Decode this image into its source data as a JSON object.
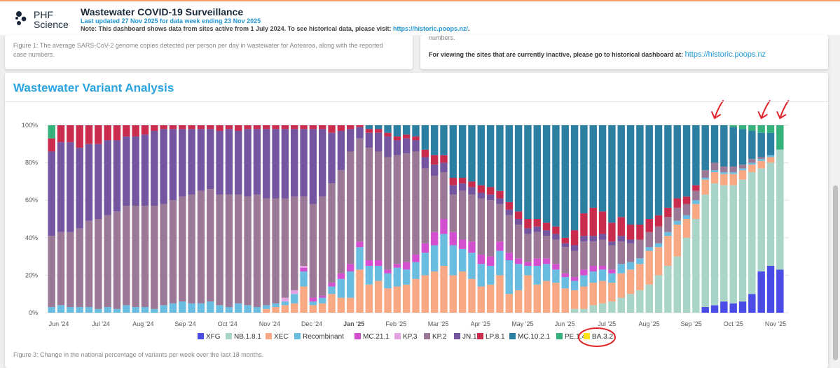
{
  "header": {
    "logo_line1": "PHF",
    "logo_line2": "Science",
    "title": "Wastewater COVID-19 Surveillance",
    "updated": "Last updated 27 Nov 2025 for data week ending 23 Nov 2025",
    "note_prefix": "Note: This dashboard shows data from sites active from 1 July 2024. To see historical data, please visit: ",
    "note_link": "https://historic.poops.nz/",
    "note_suffix": "."
  },
  "left_card": {
    "caption": "Figure 1: The average SARS-CoV-2 genome copies detected per person per day in wastewater for Aotearoa, along with the reported case numbers."
  },
  "right_card": {
    "numbers_text": "numbers.",
    "inactive_text": "For viewing the sites that are currently inactive, please go to historical dashboard at: ",
    "inactive_link": "https://historic.poops.nz"
  },
  "main": {
    "title": "Wastewater Variant Analysis",
    "caption": "Figure 3: Change in the national percentage of variants per week over the last 18 months."
  },
  "chart_data": {
    "type": "bar",
    "stacked": true,
    "title": "Wastewater Variant Analysis",
    "ylim": [
      0,
      100
    ],
    "y_ticks": [
      "0%",
      "20%",
      "40%",
      "60%",
      "80%",
      "100%"
    ],
    "x_tick_labels": [
      "Jun '24",
      "Jul '24",
      "Aug '24",
      "Sep '24",
      "Oct '24",
      "Nov '24",
      "Dec '24",
      "Jan '25",
      "Feb '25",
      "Mar '25",
      "Apr '25",
      "May '25",
      "Jun '25",
      "Jul '25",
      "Aug '25",
      "Sep '25",
      "Oct '25",
      "Nov '25"
    ],
    "bold_tick": "Jan '25",
    "weeks": 79,
    "series": [
      {
        "name": "XFG",
        "color": "#4b4be6"
      },
      {
        "name": "NB.1.8.1",
        "color": "#a8d5c8"
      },
      {
        "name": "XEC",
        "color": "#f8a882"
      },
      {
        "name": "Recombinant",
        "color": "#69bde0"
      },
      {
        "name": "MC.21.1",
        "color": "#d44fcf"
      },
      {
        "name": "KP.3",
        "color": "#e3a2e0"
      },
      {
        "name": "KP.2",
        "color": "#9b7896"
      },
      {
        "name": "JN.1",
        "color": "#7455a0"
      },
      {
        "name": "LP.8.1",
        "color": "#c92c4d"
      },
      {
        "name": "MC.10.2.1",
        "color": "#2a7fa3"
      },
      {
        "name": "PE.1.4",
        "color": "#35b27b"
      },
      {
        "name": "BA.3.2",
        "color": "#ffe31a"
      }
    ],
    "annotations": [
      {
        "type": "arrow",
        "target_week": 71,
        "color": "#e0262b"
      },
      {
        "type": "arrow",
        "target_week": 76,
        "color": "#e0262b"
      },
      {
        "type": "arrow",
        "target_week": 78,
        "color": "#e0262b"
      },
      {
        "type": "circle",
        "target": "BA.3.2 legend",
        "color": "#e0262b"
      }
    ],
    "weekly_percentages": [
      [
        0,
        0,
        0,
        3,
        0,
        0,
        38,
        45,
        7,
        0,
        7,
        0
      ],
      [
        0,
        0,
        0,
        4,
        0,
        0,
        39,
        48,
        9,
        0,
        0,
        0
      ],
      [
        0,
        0,
        0,
        3,
        0,
        0,
        40,
        48,
        9,
        0,
        0,
        0
      ],
      [
        0,
        0,
        0,
        3,
        0,
        0,
        42,
        43,
        12,
        0,
        0,
        0
      ],
      [
        0,
        0,
        0,
        3,
        0,
        0,
        46,
        41,
        10,
        0,
        0,
        0
      ],
      [
        0,
        0,
        0,
        2,
        0,
        0,
        48,
        40,
        10,
        0,
        0,
        0
      ],
      [
        0,
        0,
        0,
        3,
        0,
        0,
        49,
        40,
        8,
        0,
        0,
        0
      ],
      [
        0,
        0,
        0,
        2,
        0,
        0,
        52,
        38,
        8,
        0,
        0,
        0
      ],
      [
        0,
        0,
        0,
        4,
        0,
        0,
        53,
        37,
        6,
        0,
        0,
        0
      ],
      [
        0,
        0,
        0,
        3,
        0,
        0,
        54,
        37,
        6,
        0,
        0,
        0
      ],
      [
        0,
        0,
        0,
        3,
        0,
        0,
        54,
        38,
        5,
        0,
        0,
        0
      ],
      [
        0,
        0,
        0,
        2,
        0,
        0,
        55,
        40,
        3,
        0,
        0,
        0
      ],
      [
        0,
        0,
        0,
        4,
        0,
        0,
        54,
        40,
        2,
        0,
        0,
        0
      ],
      [
        0,
        0,
        0,
        5,
        0,
        0,
        55,
        38,
        2,
        0,
        0,
        0
      ],
      [
        0,
        0,
        0,
        6,
        0,
        0,
        56,
        36,
        2,
        0,
        0,
        0
      ],
      [
        0,
        0,
        0,
        5,
        0,
        0,
        58,
        35,
        2,
        0,
        0,
        0
      ],
      [
        0,
        0,
        0,
        5,
        0,
        0,
        60,
        33,
        2,
        0,
        0,
        0
      ],
      [
        0,
        0,
        0,
        6,
        0,
        0,
        60,
        32,
        2,
        0,
        0,
        0
      ],
      [
        0,
        0,
        0,
        4,
        0,
        0,
        59,
        34,
        3,
        0,
        0,
        0
      ],
      [
        0,
        0,
        0,
        3,
        0,
        0,
        60,
        35,
        2,
        0,
        0,
        0
      ],
      [
        0,
        0,
        0,
        5,
        0,
        0,
        58,
        34,
        3,
        0,
        0,
        0
      ],
      [
        0,
        0,
        0,
        4,
        0,
        0,
        58,
        36,
        2,
        0,
        0,
        0
      ],
      [
        0,
        0,
        0,
        3,
        0,
        0,
        60,
        35,
        2,
        0,
        0,
        0
      ],
      [
        0,
        0,
        2,
        2,
        0,
        0,
        57,
        37,
        2,
        0,
        0,
        0
      ],
      [
        0,
        0,
        3,
        2,
        0,
        0,
        56,
        37,
        2,
        0,
        0,
        0
      ],
      [
        0,
        0,
        4,
        2,
        0,
        2,
        53,
        37,
        2,
        0,
        0,
        0
      ],
      [
        0,
        0,
        5,
        5,
        0,
        2,
        50,
        36,
        2,
        0,
        0,
        0
      ],
      [
        0,
        0,
        14,
        8,
        2,
        1,
        37,
        36,
        2,
        0,
        0,
        0
      ],
      [
        0,
        0,
        4,
        2,
        2,
        0,
        50,
        40,
        2,
        0,
        0,
        0
      ],
      [
        0,
        0,
        5,
        3,
        1,
        0,
        53,
        36,
        2,
        0,
        0,
        0
      ],
      [
        0,
        0,
        10,
        4,
        2,
        0,
        53,
        27,
        4,
        0,
        0,
        0
      ],
      [
        0,
        0,
        8,
        10,
        3,
        0,
        55,
        21,
        3,
        0,
        0,
        0
      ],
      [
        0,
        0,
        8,
        14,
        4,
        0,
        60,
        12,
        2,
        0,
        0,
        0
      ],
      [
        0,
        0,
        23,
        12,
        3,
        0,
        55,
        6,
        1,
        0,
        0,
        0
      ],
      [
        0,
        0,
        15,
        10,
        3,
        0,
        60,
        8,
        2,
        2,
        0,
        0
      ],
      [
        0,
        0,
        17,
        8,
        3,
        0,
        58,
        10,
        2,
        2,
        0,
        0
      ],
      [
        0,
        0,
        13,
        8,
        2,
        0,
        60,
        11,
        2,
        4,
        0,
        0
      ],
      [
        0,
        0,
        14,
        10,
        2,
        0,
        58,
        8,
        2,
        6,
        0,
        0
      ],
      [
        0,
        0,
        15,
        8,
        4,
        0,
        58,
        8,
        2,
        5,
        0,
        0
      ],
      [
        0,
        0,
        18,
        9,
        4,
        0,
        55,
        6,
        2,
        6,
        0,
        0
      ],
      [
        0,
        0,
        20,
        12,
        5,
        0,
        40,
        6,
        4,
        13,
        0,
        0
      ],
      [
        0,
        0,
        22,
        14,
        7,
        0,
        30,
        6,
        5,
        16,
        0,
        0
      ],
      [
        0,
        0,
        25,
        17,
        8,
        0,
        25,
        5,
        4,
        16,
        0,
        0
      ],
      [
        0,
        0,
        20,
        16,
        7,
        0,
        20,
        5,
        4,
        28,
        0,
        0
      ],
      [
        0,
        0,
        22,
        12,
        5,
        0,
        26,
        4,
        3,
        28,
        0,
        0
      ],
      [
        0,
        0,
        18,
        14,
        6,
        0,
        25,
        4,
        3,
        30,
        0,
        0
      ],
      [
        0,
        0,
        14,
        12,
        5,
        0,
        30,
        3,
        4,
        32,
        0,
        0
      ],
      [
        0,
        0,
        15,
        10,
        5,
        0,
        30,
        3,
        4,
        33,
        0,
        0
      ],
      [
        0,
        0,
        20,
        13,
        5,
        0,
        20,
        3,
        4,
        35,
        0,
        0
      ],
      [
        0,
        0,
        10,
        18,
        4,
        0,
        20,
        3,
        4,
        41,
        0,
        0
      ],
      [
        0,
        0,
        12,
        14,
        3,
        0,
        18,
        3,
        4,
        46,
        0,
        0
      ],
      [
        0,
        0,
        20,
        5,
        2,
        0,
        15,
        3,
        5,
        50,
        0,
        0
      ],
      [
        0,
        0,
        15,
        10,
        4,
        0,
        14,
        3,
        4,
        50,
        0,
        0
      ],
      [
        0,
        0,
        17,
        9,
        3,
        0,
        12,
        3,
        4,
        52,
        0,
        0
      ],
      [
        0,
        0,
        16,
        7,
        3,
        0,
        13,
        3,
        4,
        54,
        0,
        0
      ],
      [
        0,
        0,
        13,
        6,
        2,
        0,
        14,
        2,
        3,
        60,
        0,
        0
      ],
      [
        0,
        2,
        10,
        5,
        2,
        0,
        14,
        3,
        8,
        56,
        0,
        0
      ],
      [
        0,
        2,
        12,
        6,
        3,
        0,
        15,
        3,
        12,
        47,
        0,
        0
      ],
      [
        0,
        4,
        12,
        6,
        3,
        0,
        13,
        3,
        15,
        44,
        0,
        0
      ],
      [
        0,
        5,
        12,
        6,
        2,
        0,
        14,
        3,
        12,
        46,
        0,
        0
      ],
      [
        0,
        6,
        10,
        5,
        2,
        0,
        13,
        2,
        10,
        52,
        0,
        0
      ],
      [
        0,
        8,
        13,
        5,
        0,
        0,
        12,
        3,
        10,
        49,
        0,
        0
      ],
      [
        0,
        10,
        13,
        4,
        0,
        0,
        10,
        2,
        8,
        53,
        0,
        0
      ],
      [
        0,
        12,
        14,
        3,
        0,
        0,
        10,
        0,
        8,
        53,
        0,
        0
      ],
      [
        0,
        15,
        18,
        2,
        0,
        0,
        8,
        0,
        7,
        50,
        0,
        0
      ],
      [
        0,
        20,
        15,
        2,
        0,
        0,
        9,
        0,
        6,
        48,
        0,
        0
      ],
      [
        0,
        25,
        16,
        2,
        0,
        0,
        8,
        0,
        5,
        44,
        0,
        0
      ],
      [
        0,
        30,
        17,
        2,
        0,
        0,
        7,
        0,
        5,
        39,
        0,
        0
      ],
      [
        0,
        40,
        10,
        2,
        0,
        0,
        6,
        0,
        4,
        38,
        0,
        0
      ],
      [
        0,
        50,
        8,
        2,
        0,
        0,
        5,
        0,
        3,
        32,
        0,
        0
      ],
      [
        3,
        60,
        8,
        1,
        0,
        0,
        4,
        0,
        0,
        24,
        0,
        0
      ],
      [
        4,
        65,
        6,
        1,
        0,
        0,
        4,
        0,
        0,
        20,
        0,
        0
      ],
      [
        6,
        62,
        6,
        1,
        0,
        0,
        3,
        0,
        0,
        22,
        0,
        0
      ],
      [
        5,
        63,
        6,
        1,
        0,
        0,
        3,
        0,
        0,
        21,
        1,
        0
      ],
      [
        6,
        65,
        5,
        1,
        0,
        0,
        2,
        0,
        0,
        19,
        2,
        0
      ],
      [
        10,
        65,
        4,
        1,
        0,
        0,
        2,
        0,
        0,
        15,
        3,
        0
      ],
      [
        22,
        55,
        4,
        1,
        0,
        0,
        1,
        0,
        0,
        13,
        4,
        0
      ],
      [
        25,
        55,
        3,
        1,
        0,
        0,
        0,
        0,
        0,
        12,
        4,
        0
      ],
      [
        23,
        64,
        0,
        0,
        0,
        0,
        0,
        0,
        0,
        0,
        13,
        0
      ]
    ]
  }
}
